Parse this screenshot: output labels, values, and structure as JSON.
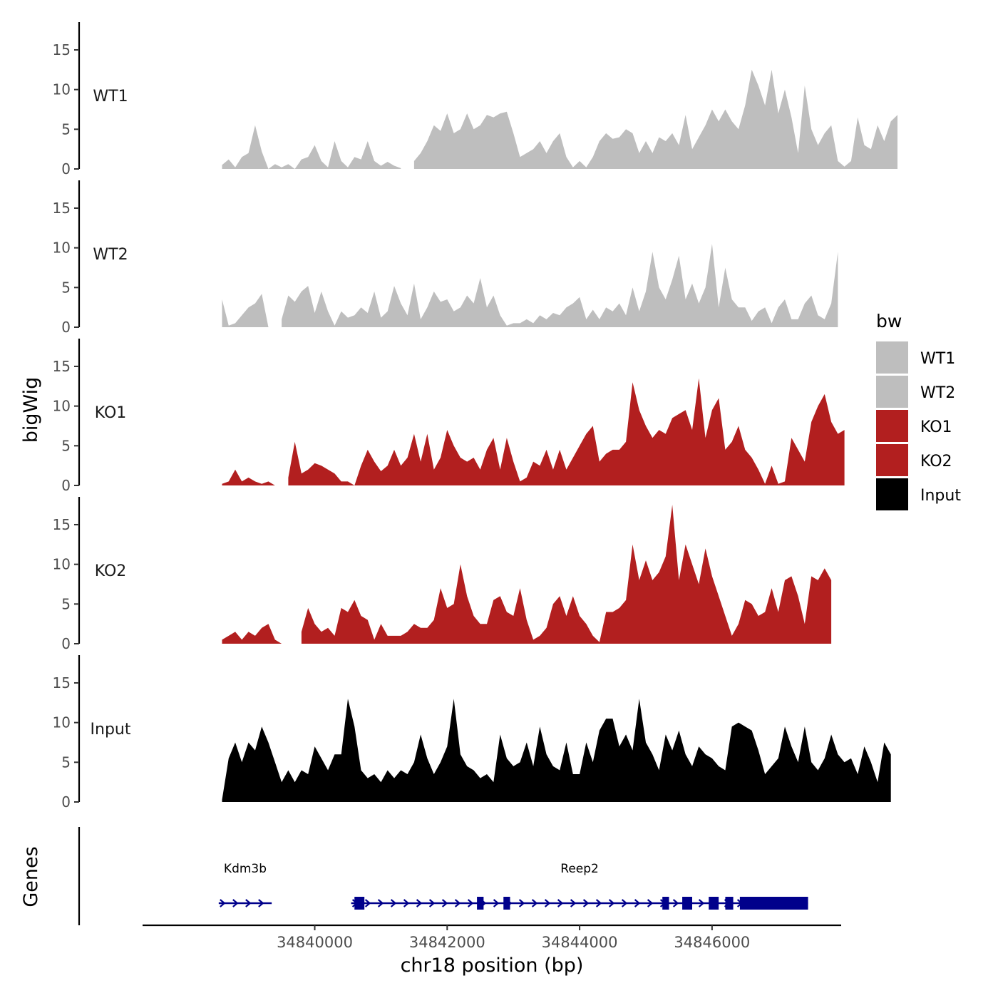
{
  "chart_data": {
    "type": "area",
    "title": "",
    "xlabel": "chr18 position (bp)",
    "panel_ylabels": [
      "bigWig",
      "Genes"
    ],
    "xlim": [
      34837400,
      34847950
    ],
    "x_ticks": [
      34840000,
      34842000,
      34844000,
      34846000
    ],
    "x_tick_labels": [
      "34840000",
      "34842000",
      "34844000",
      "34846000"
    ],
    "ylim": [
      0,
      18.5
    ],
    "y_ticks": [
      0,
      5,
      10,
      15
    ],
    "y_tick_labels": [
      "0",
      "5",
      "10",
      "15"
    ],
    "grid": false,
    "legend": {
      "title": "bw",
      "position": "right",
      "entries": [
        {
          "label": "WT1",
          "color": "#BEBEBE"
        },
        {
          "label": "WT2",
          "color": "#BEBEBE"
        },
        {
          "label": "KO1",
          "color": "#B21F1F"
        },
        {
          "label": "KO2",
          "color": "#B21F1F"
        },
        {
          "label": "Input",
          "color": "#000000"
        }
      ]
    },
    "x_start": 34838600,
    "x_step": 100,
    "series": [
      {
        "name": "WT1",
        "color": "#BEBEBE",
        "values": [
          0.5,
          1.2,
          0.2,
          1.5,
          2.0,
          5.5,
          2.2,
          0,
          0.6,
          0.2,
          0.6,
          0,
          1.2,
          1.5,
          3.0,
          1.0,
          0.2,
          3.5,
          1.0,
          0.2,
          1.5,
          1.2,
          3.5,
          1.0,
          0.4,
          0.9,
          0.4,
          0.1,
          -1,
          1.0,
          2.0,
          3.5,
          5.5,
          4.8,
          7.0,
          4.5,
          5.0,
          7.0,
          5.0,
          5.5,
          6.8,
          6.5,
          7.0,
          7.2,
          4.5,
          1.5,
          2.0,
          2.5,
          3.5,
          2.0,
          3.5,
          4.5,
          1.5,
          0.2,
          1.0,
          0.2,
          1.5,
          3.5,
          4.5,
          3.8,
          4.0,
          5.0,
          4.5,
          2.0,
          3.5,
          2.0,
          4.0,
          3.5,
          4.5,
          3.0,
          6.8,
          2.5,
          4.0,
          5.5,
          7.5,
          6.0,
          7.5,
          6.0,
          5.0,
          8.0,
          12.5,
          10.5,
          8.0,
          12.5,
          7.0,
          10.0,
          6.5,
          2.0,
          10.5,
          5.0,
          3.0,
          4.5,
          5.5,
          1.0,
          0.3,
          1.0,
          6.5,
          3.0,
          2.5,
          5.5,
          3.5,
          6.0,
          6.8
        ],
        "gaps": [
          [
            34841000,
            34841050
          ]
        ]
      },
      {
        "name": "WT2",
        "color": "#BEBEBE",
        "values": [
          3.5,
          0.2,
          0.5,
          1.5,
          2.5,
          3.0,
          4.2,
          0,
          -1,
          1.0,
          4.0,
          3.2,
          4.5,
          5.2,
          1.8,
          4.5,
          2.0,
          0.2,
          2.0,
          1.2,
          1.5,
          2.5,
          1.8,
          4.5,
          1.2,
          2.0,
          5.2,
          3.0,
          1.5,
          5.5,
          1.0,
          2.5,
          4.5,
          3.2,
          3.5,
          2.0,
          2.5,
          4.0,
          3.0,
          6.2,
          2.5,
          4.0,
          1.5,
          0.2,
          0.5,
          0.5,
          1.0,
          0.5,
          1.5,
          1.0,
          1.8,
          1.5,
          2.5,
          3.0,
          3.8,
          1.0,
          2.2,
          1.0,
          2.5,
          2.0,
          3.0,
          1.5,
          5.0,
          2.0,
          4.5,
          9.5,
          5.0,
          3.5,
          6.0,
          9.0,
          3.5,
          5.5,
          3.0,
          5.0,
          10.5,
          2.5,
          7.5,
          3.5,
          2.5,
          2.5,
          0.8,
          2.0,
          2.5,
          0.5,
          2.5,
          3.5,
          1.0,
          1.0,
          3.0,
          4.0,
          1.5,
          1.0,
          3.0,
          9.5
        ],
        "gaps": [
          [
            34839250,
            34839350
          ]
        ]
      },
      {
        "name": "KO1",
        "color": "#B21F1F",
        "values": [
          0.2,
          0.5,
          2.0,
          0.5,
          1.0,
          0.5,
          0.2,
          0.5,
          0,
          -1,
          1.0,
          5.5,
          1.5,
          2.0,
          2.8,
          2.5,
          2.0,
          1.5,
          0.5,
          0.5,
          0,
          2.5,
          4.5,
          3.0,
          1.8,
          2.5,
          4.5,
          2.5,
          3.5,
          6.5,
          3.0,
          6.5,
          2.0,
          3.5,
          7.0,
          5.0,
          3.5,
          3.0,
          3.5,
          2.0,
          4.5,
          6.0,
          2.0,
          6.0,
          3.0,
          0.5,
          1.0,
          3.0,
          2.5,
          4.5,
          2.0,
          4.5,
          2.0,
          3.5,
          5.0,
          6.5,
          7.5,
          3.0,
          4.0,
          4.5,
          4.5,
          5.5,
          13.0,
          9.5,
          7.5,
          6.0,
          7.0,
          6.5,
          8.5,
          9.0,
          9.5,
          7.0,
          13.5,
          6.0,
          9.5,
          11.0,
          4.5,
          5.5,
          7.5,
          4.5,
          3.5,
          2.0,
          0.2,
          2.5,
          0.2,
          0.5,
          6.0,
          4.5,
          3.0,
          8.0,
          10.0,
          11.5,
          8.0,
          6.5,
          7.0
        ],
        "gaps": [
          [
            34839300,
            34839400
          ]
        ]
      },
      {
        "name": "KO2",
        "color": "#B21F1F",
        "values": [
          0.5,
          1.0,
          1.5,
          0.5,
          1.5,
          1.0,
          2.0,
          2.5,
          0.5,
          0,
          -1,
          -1,
          1.5,
          4.5,
          2.5,
          1.5,
          2.0,
          1.0,
          4.5,
          4.0,
          5.5,
          3.5,
          3.0,
          0.5,
          2.5,
          1.0,
          1.0,
          1.0,
          1.5,
          2.5,
          2.0,
          2.0,
          3.0,
          7.0,
          4.5,
          5.0,
          10.0,
          6.0,
          3.5,
          2.5,
          2.5,
          5.5,
          6.0,
          4.0,
          3.5,
          7.0,
          3.0,
          0.5,
          1.0,
          2.0,
          5.0,
          6.0,
          3.5,
          6.0,
          3.5,
          2.5,
          1.0,
          0.2,
          4.0,
          4.0,
          4.5,
          5.5,
          12.5,
          8.0,
          10.5,
          8.0,
          9.0,
          11.0,
          17.5,
          8.0,
          12.5,
          10.0,
          7.5,
          12.0,
          8.5,
          6.0,
          3.5,
          1.0,
          2.5,
          5.5,
          5.0,
          3.5,
          4.0,
          7.0,
          4.0,
          8.0,
          8.5,
          6.0,
          2.5,
          8.5,
          8.0,
          9.5,
          8.0
        ],
        "gaps": [
          [
            34839350,
            34839650
          ]
        ]
      },
      {
        "name": "Input",
        "color": "#000000",
        "values": [
          0.3,
          5.5,
          7.5,
          5.0,
          7.5,
          6.5,
          9.5,
          7.5,
          5.0,
          2.5,
          4.0,
          2.5,
          4.0,
          3.5,
          7.0,
          5.5,
          4.0,
          6.0,
          6.0,
          13.0,
          9.5,
          4.0,
          3.0,
          3.5,
          2.5,
          4.0,
          3.0,
          4.0,
          3.5,
          5.0,
          8.5,
          5.5,
          3.5,
          5.0,
          7.0,
          13.0,
          6.0,
          4.5,
          4.0,
          3.0,
          3.5,
          2.5,
          8.5,
          5.5,
          4.5,
          5.0,
          7.5,
          4.5,
          9.5,
          6.0,
          4.5,
          4.0,
          7.5,
          3.5,
          3.5,
          7.5,
          5.0,
          9.0,
          10.5,
          10.5,
          7.0,
          8.5,
          6.5,
          13.0,
          7.5,
          6.0,
          4.0,
          8.5,
          6.5,
          9.0,
          6.0,
          4.5,
          7.0,
          6.0,
          5.5,
          4.5,
          4.0,
          9.5,
          10.0,
          9.5,
          9.0,
          6.5,
          3.5,
          4.5,
          5.5,
          9.5,
          7.0,
          5.0,
          9.5,
          5.0,
          4.0,
          5.5,
          8.5,
          6.0,
          5.0,
          5.5,
          3.5,
          7.0,
          5.0,
          2.5,
          7.5,
          6.0
        ],
        "gaps": []
      }
    ],
    "genes": [
      {
        "name": "Kdm3b",
        "color": "#00008B",
        "start": 34838550,
        "end": 34839350,
        "strand": "+",
        "exons": []
      },
      {
        "name": "Reep2",
        "color": "#00008B",
        "start": 34840550,
        "end": 34847450,
        "strand": "+",
        "exons": [
          [
            34840600,
            34840750
          ],
          [
            34842450,
            34842550
          ],
          [
            34842850,
            34842950
          ],
          [
            34845250,
            34845350
          ],
          [
            34845550,
            34845700
          ],
          [
            34845950,
            34846100
          ],
          [
            34846200,
            34846320
          ],
          [
            34846420,
            34847450
          ]
        ]
      }
    ]
  }
}
